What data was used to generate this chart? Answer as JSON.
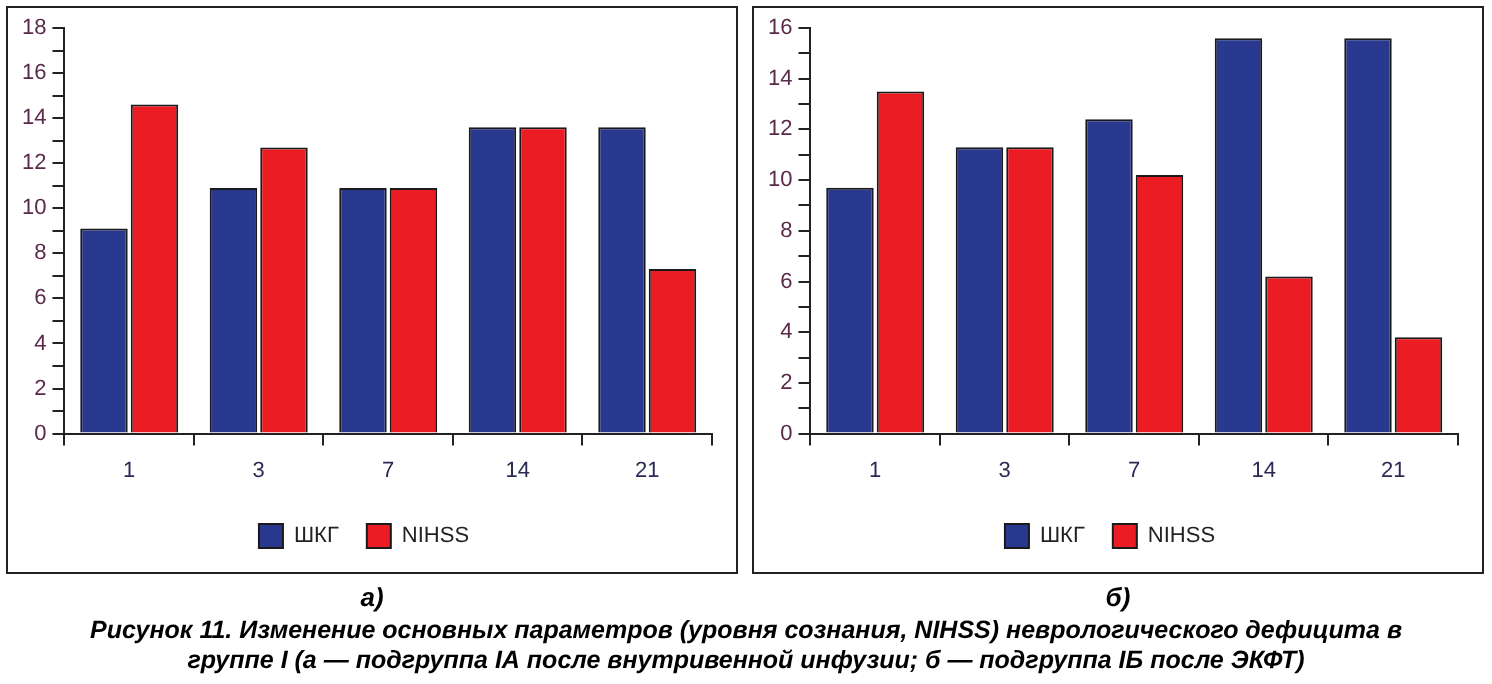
{
  "chart_data": [
    {
      "type": "bar",
      "subtitle": "а)",
      "categories": [
        "1",
        "3",
        "7",
        "14",
        "21"
      ],
      "series": [
        {
          "name": "ШКГ",
          "color": "#2a3990",
          "values": [
            9.1,
            10.9,
            10.9,
            13.6,
            13.6
          ]
        },
        {
          "name": "NIHSS",
          "color": "#ec1c24",
          "values": [
            14.6,
            12.7,
            10.9,
            13.6,
            7.3
          ]
        }
      ],
      "ylim": [
        0,
        18
      ],
      "yticks": [
        0,
        {
          "value": 1,
          "label": null
        },
        2,
        {
          "value": 3,
          "label": null
        },
        4,
        {
          "value": 5,
          "label": null
        },
        6,
        {
          "value": 7,
          "label": null
        },
        8,
        {
          "value": 9,
          "label": null
        },
        10,
        {
          "value": 11,
          "label": null
        },
        12,
        {
          "value": 13,
          "label": null
        },
        14,
        {
          "value": 15,
          "label": null
        },
        16,
        {
          "value": 17,
          "label": null
        },
        18
      ],
      "grid": false,
      "legend": "bottom",
      "annotations": [
        "Рисунок 11. Изменение основных параметров (уровня сознания, NIHSS) неврологического дефицита в группе I (а — подгруппа IА после внутривенной инфузии; б — подгруппа IБ после ЭКФТ)"
      ]
    },
    {
      "type": "bar",
      "subtitle": "б)",
      "categories": [
        "1",
        "3",
        "7",
        "14",
        "21"
      ],
      "series": [
        {
          "name": "ШКГ",
          "color": "#2a3990",
          "values": [
            9.7,
            11.3,
            12.4,
            15.6,
            15.6
          ]
        },
        {
          "name": "NIHSS",
          "color": "#ec1c24",
          "values": [
            13.5,
            11.3,
            10.2,
            6.2,
            3.8
          ]
        }
      ],
      "ylim": [
        0,
        16
      ],
      "yticks": [
        0,
        {
          "value": 1,
          "label": null
        },
        2,
        {
          "value": 3,
          "label": null
        },
        4,
        {
          "value": 5,
          "label": null
        },
        6,
        {
          "value": 7,
          "label": null
        },
        8,
        {
          "value": 9,
          "label": null
        },
        10,
        {
          "value": 11,
          "label": null
        },
        12,
        {
          "value": 13,
          "label": null
        },
        14,
        {
          "value": 15,
          "label": null
        },
        16
      ],
      "grid": false,
      "legend": "bottom"
    }
  ]
}
